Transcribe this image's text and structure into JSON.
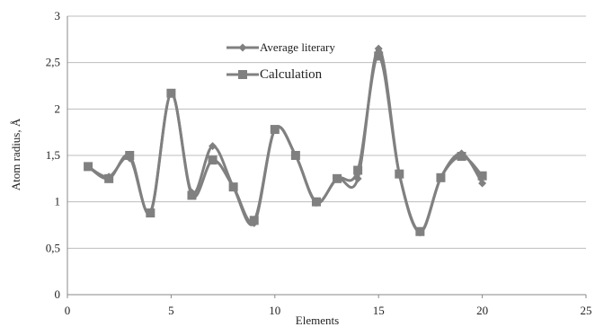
{
  "chart_data": {
    "type": "line",
    "title": "",
    "xlabel": "Elements",
    "ylabel": "Atom radius, Å",
    "xlim": [
      0,
      25
    ],
    "ylim": [
      0,
      3
    ],
    "x_ticks": [
      "0",
      "5",
      "10",
      "15",
      "20",
      "25"
    ],
    "y_ticks": [
      "0",
      "0,5",
      "1",
      "1,5",
      "2",
      "2,5",
      "3"
    ],
    "grid": "horizontal",
    "legend_position": "top-center",
    "series": [
      {
        "name": "Average literary",
        "marker": "diamond",
        "color": "#808080",
        "x": [
          1,
          2,
          3,
          4,
          5,
          6,
          7,
          8,
          9,
          10,
          11,
          12,
          13,
          14,
          15,
          16,
          17,
          18,
          19,
          20
        ],
        "y": [
          1.38,
          1.27,
          1.47,
          0.89,
          2.17,
          1.1,
          1.6,
          1.16,
          0.77,
          1.78,
          1.5,
          0.99,
          1.25,
          1.25,
          2.65,
          1.3,
          0.67,
          1.26,
          1.52,
          1.2
        ]
      },
      {
        "name": "Calculation",
        "marker": "square",
        "color": "#808080",
        "x": [
          1,
          2,
          3,
          4,
          5,
          6,
          7,
          8,
          9,
          10,
          11,
          12,
          13,
          14,
          15,
          16,
          17,
          18,
          19,
          20
        ],
        "y": [
          1.38,
          1.25,
          1.5,
          0.88,
          2.17,
          1.07,
          1.45,
          1.16,
          0.8,
          1.78,
          1.5,
          1.0,
          1.25,
          1.34,
          2.57,
          1.3,
          0.68,
          1.26,
          1.49,
          1.28
        ]
      }
    ]
  }
}
